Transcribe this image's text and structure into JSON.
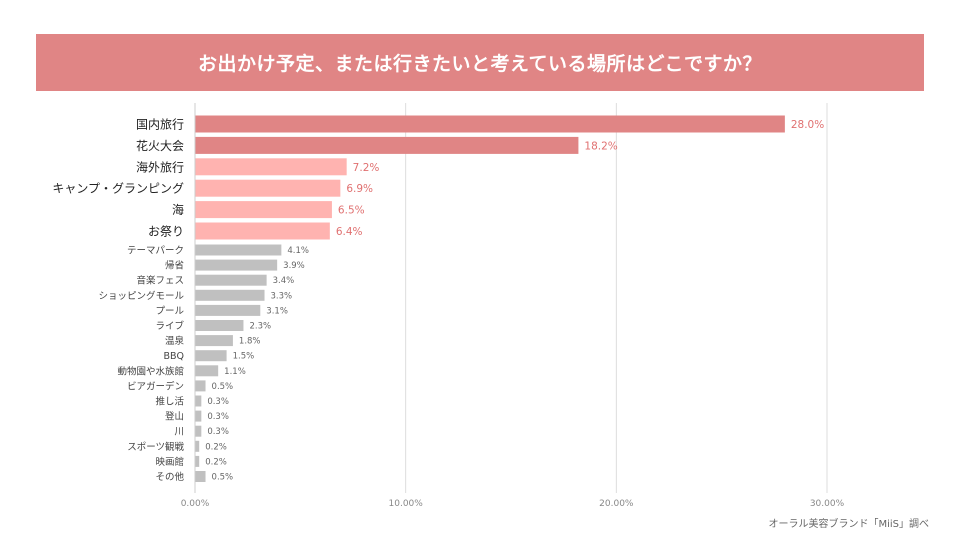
{
  "title": "お出かけ予定、または行きたいと考えている場所はどこですか？",
  "source": "オーラル美容ブランド「MiiS」調べ",
  "colors": {
    "banner": "#e08585",
    "top": "#e08585",
    "mid": "#ffb3b0",
    "rest": "#c0c0c0",
    "top_label": "#e07070",
    "rest_label": "#666666"
  },
  "chart_data": {
    "type": "bar",
    "orientation": "horizontal",
    "title": "お出かけ予定、または行きたいと考えている場所はどこですか？",
    "xlabel": "",
    "ylabel": "",
    "xlim": [
      0,
      30
    ],
    "x_ticks": [
      0,
      10,
      20,
      30
    ],
    "x_tick_labels": [
      "0.00%",
      "10.00%",
      "20.00%",
      "30.00%"
    ],
    "grid": true,
    "categories": [
      "国内旅行",
      "花火大会",
      "海外旅行",
      "キャンプ・グランピング",
      "海",
      "お祭り",
      "テーマパーク",
      "帰省",
      "音楽フェス",
      "ショッピングモール",
      "プール",
      "ライブ",
      "温泉",
      "BBQ",
      "動物園や水族館",
      "ビアガーデン",
      "推し活",
      "登山",
      "川",
      "スポーツ観戦",
      "映画館",
      "その他"
    ],
    "values": [
      28.0,
      18.2,
      7.2,
      6.9,
      6.5,
      6.4,
      4.1,
      3.9,
      3.4,
      3.3,
      3.1,
      2.3,
      1.8,
      1.5,
      1.1,
      0.5,
      0.3,
      0.3,
      0.3,
      0.2,
      0.2,
      0.5
    ],
    "value_labels": [
      "28.0%",
      "18.2%",
      "7.2%",
      "6.9%",
      "6.5%",
      "6.4%",
      "4.1%",
      "3.9%",
      "3.4%",
      "3.3%",
      "3.1%",
      "2.3%",
      "1.8%",
      "1.5%",
      "1.1%",
      "0.5%",
      "0.3%",
      "0.3%",
      "0.3%",
      "0.2%",
      "0.2%",
      "0.5%"
    ]
  }
}
